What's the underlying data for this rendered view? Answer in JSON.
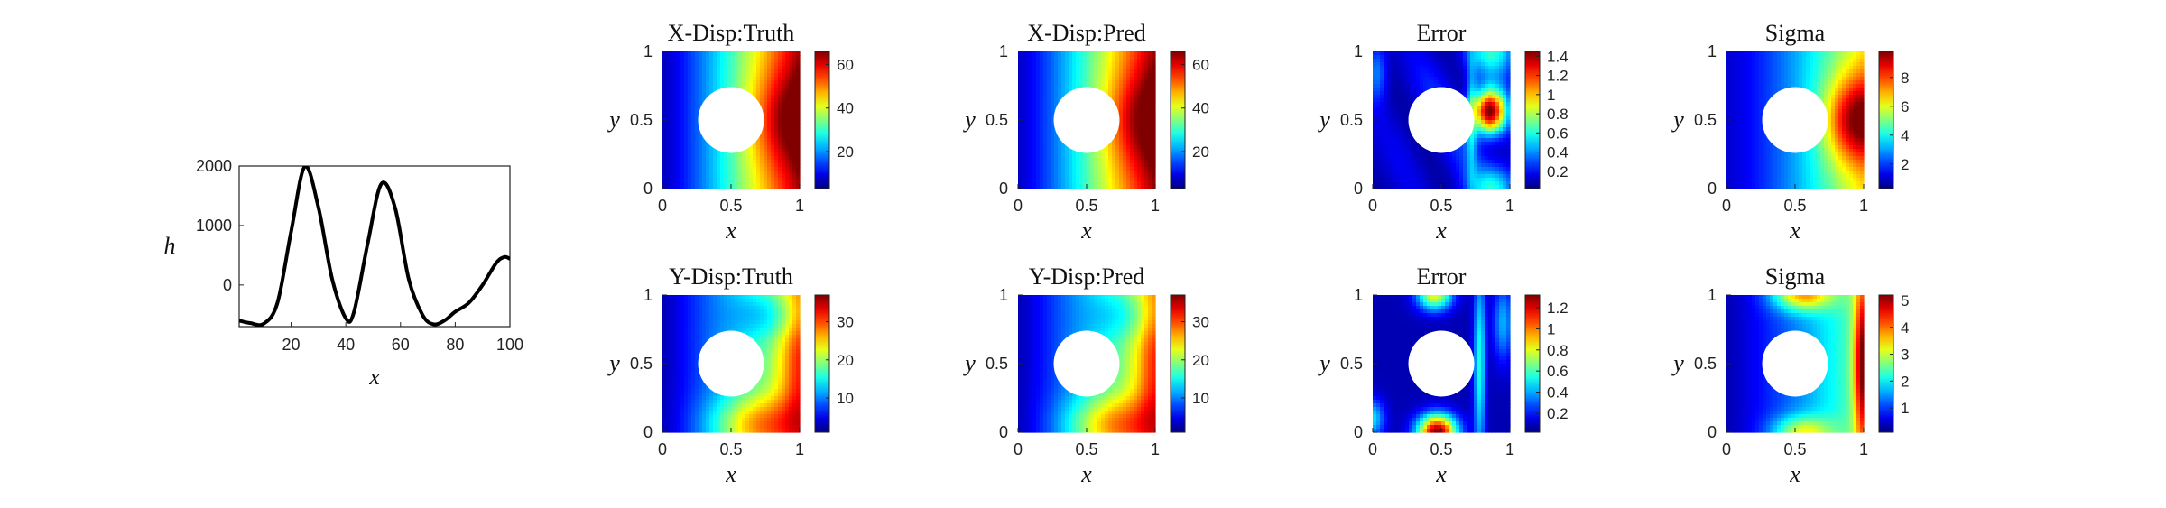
{
  "chart_data": [
    {
      "type": "line",
      "xlabel": "x",
      "ylabel": "h",
      "xlim": [
        1,
        100
      ],
      "ylim": [
        -700,
        2000
      ],
      "xticks": [
        20,
        40,
        60,
        80,
        100
      ],
      "yticks": [
        0,
        1000,
        2000
      ],
      "color": "#000000",
      "x": [
        1,
        5,
        10,
        15,
        20,
        25,
        30,
        35,
        40,
        43,
        48,
        53,
        58,
        63,
        68,
        72,
        76,
        80,
        85,
        90,
        95,
        98,
        100
      ],
      "y": [
        -600,
        -640,
        -650,
        -300,
        900,
        1990,
        1300,
        100,
        -560,
        -450,
        700,
        1700,
        1300,
        100,
        -500,
        -660,
        -600,
        -450,
        -300,
        0,
        370,
        470,
        440
      ]
    },
    {
      "type": "heatmap",
      "title": "X-Disp:Truth",
      "xlabel": "x",
      "ylabel": "y",
      "xlim": [
        0,
        1
      ],
      "ylim": [
        0,
        1
      ],
      "xticks": [
        0,
        0.5,
        1
      ],
      "yticks": [
        0,
        0.5,
        1
      ],
      "hole": {
        "center": [
          0.5,
          0.5
        ],
        "radius": 0.24
      },
      "colormap": "jet",
      "crange": [
        3,
        66
      ],
      "cticks": [
        20,
        40,
        60
      ],
      "field": "x_disp_truth"
    },
    {
      "type": "heatmap",
      "title": "X-Disp:Pred",
      "xlabel": "x",
      "ylabel": "y",
      "xlim": [
        0,
        1
      ],
      "ylim": [
        0,
        1
      ],
      "xticks": [
        0,
        0.5,
        1
      ],
      "yticks": [
        0,
        0.5,
        1
      ],
      "hole": {
        "center": [
          0.5,
          0.5
        ],
        "radius": 0.24
      },
      "colormap": "jet",
      "crange": [
        3,
        66
      ],
      "cticks": [
        20,
        40,
        60
      ],
      "field": "x_disp_pred"
    },
    {
      "type": "heatmap",
      "title": "Error",
      "xlabel": "x",
      "ylabel": "y",
      "xlim": [
        0,
        1
      ],
      "ylim": [
        0,
        1
      ],
      "xticks": [
        0,
        0.5,
        1
      ],
      "yticks": [
        0,
        0.5,
        1
      ],
      "hole": {
        "center": [
          0.5,
          0.5
        ],
        "radius": 0.24
      },
      "colormap": "jet",
      "crange": [
        0.02,
        1.45
      ],
      "cticks": [
        0.2,
        0.4,
        0.6,
        0.8,
        1,
        1.2,
        1.4
      ],
      "field": "x_error"
    },
    {
      "type": "heatmap",
      "title": "Sigma",
      "xlabel": "x",
      "ylabel": "y",
      "xlim": [
        0,
        1
      ],
      "ylim": [
        0,
        1
      ],
      "xticks": [
        0,
        0.5,
        1
      ],
      "yticks": [
        0,
        0.5,
        1
      ],
      "hole": {
        "center": [
          0.5,
          0.5
        ],
        "radius": 0.24
      },
      "colormap": "jet",
      "crange": [
        0.3,
        9.8
      ],
      "cticks": [
        2,
        4,
        6,
        8
      ],
      "field": "x_sigma"
    },
    {
      "type": "heatmap",
      "title": "Y-Disp:Truth",
      "xlabel": "x",
      "ylabel": "y",
      "xlim": [
        0,
        1
      ],
      "ylim": [
        0,
        1
      ],
      "xticks": [
        0,
        0.5,
        1
      ],
      "yticks": [
        0,
        0.5,
        1
      ],
      "hole": {
        "center": [
          0.5,
          0.5
        ],
        "radius": 0.24
      },
      "colormap": "jet",
      "crange": [
        1,
        37
      ],
      "cticks": [
        10,
        20,
        30
      ],
      "field": "y_disp_truth"
    },
    {
      "type": "heatmap",
      "title": "Y-Disp:Pred",
      "xlabel": "x",
      "ylabel": "y",
      "xlim": [
        0,
        1
      ],
      "ylim": [
        0,
        1
      ],
      "xticks": [
        0,
        0.5,
        1
      ],
      "yticks": [
        0,
        0.5,
        1
      ],
      "hole": {
        "center": [
          0.5,
          0.5
        ],
        "radius": 0.24
      },
      "colormap": "jet",
      "crange": [
        1,
        37
      ],
      "cticks": [
        10,
        20,
        30
      ],
      "field": "y_disp_pred"
    },
    {
      "type": "heatmap",
      "title": "Error",
      "xlabel": "x",
      "ylabel": "y",
      "xlim": [
        0,
        1
      ],
      "ylim": [
        0,
        1
      ],
      "xticks": [
        0,
        0.5,
        1
      ],
      "yticks": [
        0,
        0.5,
        1
      ],
      "hole": {
        "center": [
          0.5,
          0.5
        ],
        "radius": 0.24
      },
      "colormap": "jet",
      "crange": [
        0.02,
        1.32
      ],
      "cticks": [
        0.2,
        0.4,
        0.6,
        0.8,
        1,
        1.2
      ],
      "field": "y_error"
    },
    {
      "type": "heatmap",
      "title": "Sigma",
      "xlabel": "x",
      "ylabel": "y",
      "xlim": [
        0,
        1
      ],
      "ylim": [
        0,
        1
      ],
      "xticks": [
        0,
        0.5,
        1
      ],
      "yticks": [
        0,
        0.5,
        1
      ],
      "hole": {
        "center": [
          0.5,
          0.5
        ],
        "radius": 0.24
      },
      "colormap": "jet",
      "crange": [
        0.1,
        5.2
      ],
      "cticks": [
        1,
        2,
        3,
        4,
        5
      ],
      "field": "y_sigma"
    }
  ]
}
